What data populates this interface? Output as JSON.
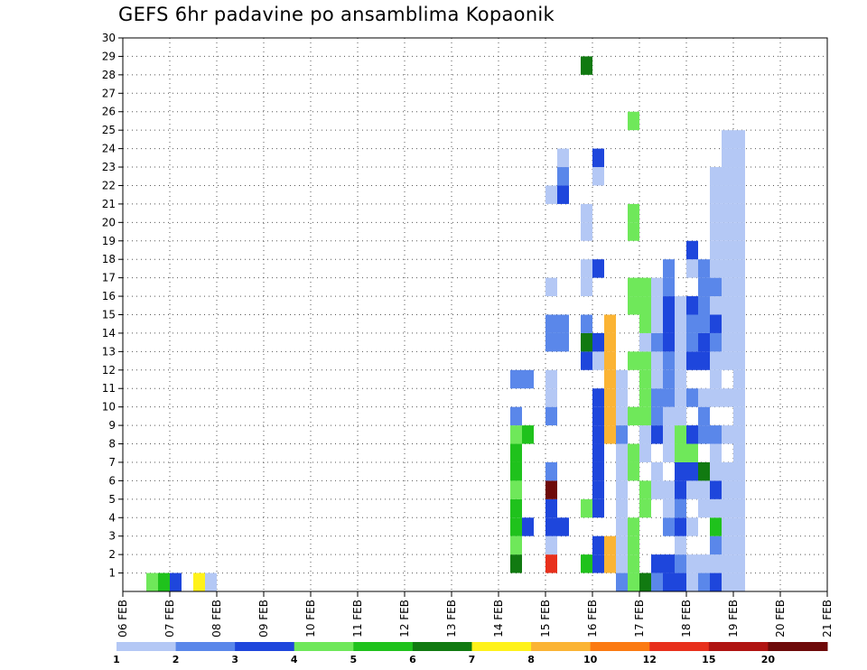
{
  "chart_data": {
    "type": "heatmap",
    "title": "GEFS 6hr padavine po ansamblima Kopaonik",
    "x_labels": [
      "06 FEB",
      "07 FEB",
      "08 FEB",
      "09 FEB",
      "10 FEB",
      "11 FEB",
      "12 FEB",
      "13 FEB",
      "14 FEB",
      "15 FEB",
      "16 FEB",
      "17 FEB",
      "18 FEB",
      "19 FEB",
      "20 FEB",
      "21 FEB"
    ],
    "y_labels": [
      "1",
      "2",
      "3",
      "4",
      "5",
      "6",
      "7",
      "8",
      "9",
      "10",
      "11",
      "12",
      "13",
      "14",
      "15",
      "16",
      "17",
      "18",
      "19",
      "20",
      "21",
      "22",
      "23",
      "24",
      "25",
      "26",
      "27",
      "28",
      "29",
      "30"
    ],
    "colorbar": {
      "ticks": [
        "1",
        "2",
        "3",
        "4",
        "5",
        "6",
        "7",
        "8",
        "10",
        "12",
        "15",
        "20"
      ],
      "colors": [
        "#b4c8f5",
        "#5a87ea",
        "#1e46dc",
        "#6fe85a",
        "#1fc21c",
        "#117a11",
        "#fff21a",
        "#fbb434",
        "#fb7a12",
        "#e8301c",
        "#b01412",
        "#6e0a0a"
      ]
    },
    "time_range": [
      "06 FEB 00Z",
      "21 FEB 00Z"
    ],
    "step_hours": 6,
    "member_range": [
      0,
      30
    ],
    "cells": [
      [
        0.5,
        0,
        4
      ],
      [
        0.75,
        0,
        5
      ],
      [
        1,
        0,
        3
      ],
      [
        1.5,
        0,
        7
      ],
      [
        1.75,
        0,
        1
      ],
      [
        8.25,
        1,
        6
      ],
      [
        8.25,
        2,
        4
      ],
      [
        8.25,
        3,
        5
      ],
      [
        8.5,
        3,
        3
      ],
      [
        8.25,
        4,
        5
      ],
      [
        8.25,
        5,
        4
      ],
      [
        8.25,
        6,
        5
      ],
      [
        8.25,
        7,
        5
      ],
      [
        8.25,
        8,
        4
      ],
      [
        8.5,
        8,
        5
      ],
      [
        8.25,
        9,
        2
      ],
      [
        8.25,
        11,
        2
      ],
      [
        8.5,
        11,
        2
      ],
      [
        9,
        1,
        10
      ],
      [
        9,
        2,
        1
      ],
      [
        9,
        3,
        3
      ],
      [
        9.25,
        3,
        3
      ],
      [
        9,
        4,
        3
      ],
      [
        9,
        5,
        13
      ],
      [
        9,
        6,
        2
      ],
      [
        9,
        9,
        2
      ],
      [
        9,
        10,
        1
      ],
      [
        9,
        11,
        1
      ],
      [
        9,
        13,
        2
      ],
      [
        9,
        14,
        2
      ],
      [
        9.25,
        13,
        2
      ],
      [
        9.25,
        14,
        2
      ],
      [
        9,
        16,
        1
      ],
      [
        9,
        21,
        1
      ],
      [
        9.25,
        21,
        3
      ],
      [
        9.25,
        22,
        2
      ],
      [
        9.25,
        23,
        1
      ],
      [
        9.75,
        1,
        5
      ],
      [
        9.75,
        4,
        4
      ],
      [
        9.75,
        12,
        3
      ],
      [
        9.75,
        13,
        6
      ],
      [
        9.75,
        14,
        2
      ],
      [
        9.75,
        16,
        1
      ],
      [
        9.75,
        17,
        1
      ],
      [
        9.75,
        19,
        1
      ],
      [
        9.75,
        20,
        1
      ],
      [
        9.75,
        28,
        6
      ],
      [
        10,
        1,
        3
      ],
      [
        10,
        2,
        3
      ],
      [
        10,
        4,
        3
      ],
      [
        10,
        5,
        3
      ],
      [
        10,
        6,
        3
      ],
      [
        10,
        7,
        3
      ],
      [
        10,
        8,
        3
      ],
      [
        10,
        9,
        3
      ],
      [
        10,
        10,
        3
      ],
      [
        10,
        12,
        1
      ],
      [
        10,
        13,
        3
      ],
      [
        10,
        17,
        3
      ],
      [
        10,
        22,
        1
      ],
      [
        10,
        23,
        3
      ],
      [
        10.25,
        1,
        8
      ],
      [
        10.25,
        2,
        8
      ],
      [
        10.25,
        8,
        8
      ],
      [
        10.25,
        9,
        8
      ],
      [
        10.25,
        10,
        8
      ],
      [
        10.25,
        11,
        8
      ],
      [
        10.25,
        12,
        8
      ],
      [
        10.25,
        13,
        8
      ],
      [
        10.25,
        14,
        8
      ],
      [
        10.5,
        0,
        2
      ],
      [
        10.5,
        1,
        1
      ],
      [
        10.5,
        2,
        1
      ],
      [
        10.5,
        3,
        1
      ],
      [
        10.5,
        4,
        1
      ],
      [
        10.5,
        5,
        1
      ],
      [
        10.5,
        6,
        1
      ],
      [
        10.5,
        7,
        1
      ],
      [
        10.5,
        8,
        2
      ],
      [
        10.5,
        9,
        1
      ],
      [
        10.5,
        10,
        1
      ],
      [
        10.5,
        11,
        1
      ],
      [
        10.75,
        0,
        4
      ],
      [
        10.75,
        1,
        4
      ],
      [
        10.75,
        2,
        4
      ],
      [
        10.75,
        3,
        4
      ],
      [
        10.75,
        6,
        4
      ],
      [
        10.75,
        7,
        4
      ],
      [
        10.75,
        9,
        4
      ],
      [
        10.75,
        12,
        4
      ],
      [
        10.75,
        15,
        4
      ],
      [
        10.75,
        16,
        4
      ],
      [
        10.75,
        19,
        4
      ],
      [
        10.75,
        20,
        4
      ],
      [
        10.75,
        25,
        4
      ],
      [
        11,
        0,
        6
      ],
      [
        11,
        4,
        4
      ],
      [
        11,
        5,
        4
      ],
      [
        11,
        7,
        1
      ],
      [
        11,
        8,
        1
      ],
      [
        11,
        9,
        4
      ],
      [
        11,
        10,
        4
      ],
      [
        11,
        11,
        4
      ],
      [
        11,
        12,
        4
      ],
      [
        11,
        13,
        1
      ],
      [
        11,
        14,
        4
      ],
      [
        11,
        15,
        4
      ],
      [
        11,
        16,
        4
      ],
      [
        11.25,
        0,
        2
      ],
      [
        11.25,
        1,
        3
      ],
      [
        11.25,
        5,
        1
      ],
      [
        11.25,
        6,
        1
      ],
      [
        11.25,
        8,
        3
      ],
      [
        11.25,
        9,
        2
      ],
      [
        11.25,
        10,
        2
      ],
      [
        11.25,
        11,
        1
      ],
      [
        11.25,
        12,
        1
      ],
      [
        11.25,
        13,
        2
      ],
      [
        11.25,
        14,
        1
      ],
      [
        11.25,
        15,
        1
      ],
      [
        11.25,
        16,
        1
      ],
      [
        11.5,
        0,
        3
      ],
      [
        11.5,
        1,
        3
      ],
      [
        11.5,
        3,
        2
      ],
      [
        11.5,
        4,
        1
      ],
      [
        11.5,
        5,
        1
      ],
      [
        11.5,
        7,
        1
      ],
      [
        11.5,
        8,
        1
      ],
      [
        11.5,
        9,
        1
      ],
      [
        11.5,
        10,
        2
      ],
      [
        11.5,
        11,
        2
      ],
      [
        11.5,
        12,
        2
      ],
      [
        11.5,
        13,
        3
      ],
      [
        11.5,
        14,
        3
      ],
      [
        11.5,
        15,
        3
      ],
      [
        11.5,
        16,
        2
      ],
      [
        11.5,
        17,
        2
      ],
      [
        11.75,
        0,
        3
      ],
      [
        11.75,
        1,
        2
      ],
      [
        11.75,
        2,
        1
      ],
      [
        11.75,
        3,
        3
      ],
      [
        11.75,
        4,
        2
      ],
      [
        11.75,
        5,
        3
      ],
      [
        11.75,
        6,
        3
      ],
      [
        11.75,
        7,
        4
      ],
      [
        11.75,
        8,
        4
      ],
      [
        11.75,
        9,
        1
      ],
      [
        11.75,
        10,
        1
      ],
      [
        11.75,
        11,
        1
      ],
      [
        11.75,
        12,
        1
      ],
      [
        11.75,
        13,
        1
      ],
      [
        11.75,
        14,
        1
      ],
      [
        11.75,
        15,
        1
      ],
      [
        12,
        0,
        1
      ],
      [
        12,
        1,
        1
      ],
      [
        12,
        3,
        1
      ],
      [
        12,
        5,
        1
      ],
      [
        12,
        6,
        3
      ],
      [
        12,
        7,
        4
      ],
      [
        12,
        8,
        3
      ],
      [
        12,
        10,
        2
      ],
      [
        12,
        12,
        3
      ],
      [
        12,
        13,
        2
      ],
      [
        12,
        14,
        2
      ],
      [
        12,
        15,
        3
      ],
      [
        12,
        17,
        1
      ],
      [
        12,
        18,
        3
      ],
      [
        12.25,
        0,
        2
      ],
      [
        12.25,
        1,
        1
      ],
      [
        12.25,
        4,
        1
      ],
      [
        12.25,
        5,
        1
      ],
      [
        12.25,
        6,
        6
      ],
      [
        12.25,
        8,
        2
      ],
      [
        12.25,
        9,
        2
      ],
      [
        12.25,
        10,
        1
      ],
      [
        12.25,
        12,
        3
      ],
      [
        12.25,
        13,
        3
      ],
      [
        12.25,
        14,
        2
      ],
      [
        12.25,
        15,
        2
      ],
      [
        12.25,
        16,
        2
      ],
      [
        12.25,
        17,
        2
      ],
      [
        12.5,
        0,
        3
      ],
      [
        12.5,
        1,
        1
      ],
      [
        12.5,
        2,
        2
      ],
      [
        12.5,
        3,
        5
      ],
      [
        12.5,
        4,
        1
      ],
      [
        12.5,
        5,
        3
      ],
      [
        12.5,
        6,
        1
      ],
      [
        12.5,
        7,
        1
      ],
      [
        12.5,
        8,
        2
      ],
      [
        12.5,
        10,
        1
      ],
      [
        12.5,
        11,
        1
      ],
      [
        12.5,
        12,
        1
      ],
      [
        12.5,
        13,
        2
      ],
      [
        12.5,
        14,
        3
      ],
      [
        12.5,
        15,
        1
      ],
      [
        12.5,
        16,
        2
      ],
      [
        12.5,
        17,
        1
      ],
      [
        12.5,
        18,
        1
      ],
      [
        12.5,
        19,
        1
      ],
      [
        12.5,
        20,
        1
      ],
      [
        12.5,
        21,
        1
      ],
      [
        12.5,
        22,
        1
      ],
      [
        12.75,
        0,
        1
      ],
      [
        12.75,
        1,
        1
      ],
      [
        12.75,
        2,
        1
      ],
      [
        12.75,
        3,
        1
      ],
      [
        12.75,
        4,
        1
      ],
      [
        12.75,
        5,
        1
      ],
      [
        12.75,
        6,
        1
      ],
      [
        12.75,
        8,
        1
      ],
      [
        12.75,
        10,
        1
      ],
      [
        12.75,
        12,
        1
      ],
      [
        12.75,
        13,
        1
      ],
      [
        12.75,
        14,
        1
      ],
      [
        12.75,
        15,
        1
      ],
      [
        12.75,
        16,
        1
      ],
      [
        12.75,
        17,
        1
      ],
      [
        12.75,
        18,
        1
      ],
      [
        12.75,
        19,
        1
      ],
      [
        12.75,
        20,
        1
      ],
      [
        12.75,
        21,
        1
      ],
      [
        12.75,
        22,
        1
      ],
      [
        12.75,
        23,
        1
      ],
      [
        12.75,
        24,
        1
      ],
      [
        13,
        0,
        1
      ],
      [
        13,
        1,
        1
      ],
      [
        13,
        2,
        1
      ],
      [
        13,
        3,
        1
      ],
      [
        13,
        4,
        1
      ],
      [
        13,
        5,
        1
      ],
      [
        13,
        6,
        1
      ],
      [
        13,
        7,
        1
      ],
      [
        13,
        8,
        1
      ],
      [
        13,
        9,
        1
      ],
      [
        13,
        10,
        1
      ],
      [
        13,
        11,
        1
      ],
      [
        13,
        12,
        1
      ],
      [
        13,
        13,
        1
      ],
      [
        13,
        14,
        1
      ],
      [
        13,
        15,
        1
      ],
      [
        13,
        16,
        1
      ],
      [
        13,
        17,
        1
      ],
      [
        13,
        18,
        1
      ],
      [
        13,
        19,
        1
      ],
      [
        13,
        20,
        1
      ],
      [
        13,
        21,
        1
      ],
      [
        13,
        22,
        1
      ],
      [
        13,
        23,
        1
      ],
      [
        13,
        24,
        1
      ]
    ]
  }
}
